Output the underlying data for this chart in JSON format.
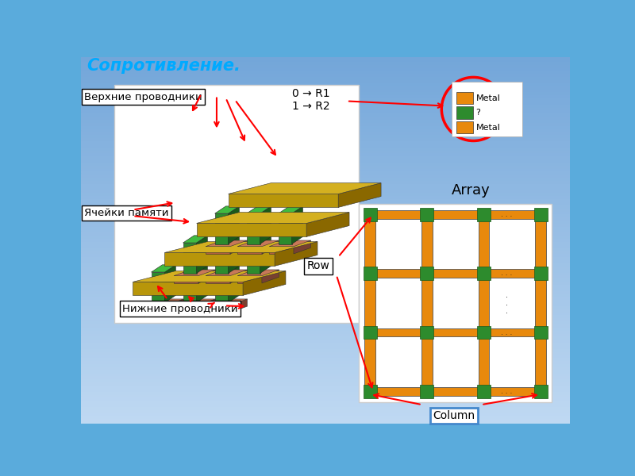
{
  "title": "Сопротивление.",
  "title_color": "#00AAFF",
  "orange_color": "#E8890C",
  "green_color": "#2D8B2D",
  "gold_face": "#B8960A",
  "gold_top": "#D4B020",
  "gold_side": "#8A6800",
  "brown_face": "#B06040",
  "brown_top": "#C87858",
  "brown_side": "#784030",
  "green_face": "#2D8B2D",
  "green_top": "#40BB40",
  "green_side": "#1A5A1A",
  "labels": {
    "top_conductors": "Верхние проводники",
    "memory_cells": "Ячейки памяти",
    "bottom_conductors": "Нижние проводники",
    "bit_map": "0 → R1\n1 → R2",
    "array_label": "Array",
    "row_label": "Row",
    "column_label": "Column"
  }
}
